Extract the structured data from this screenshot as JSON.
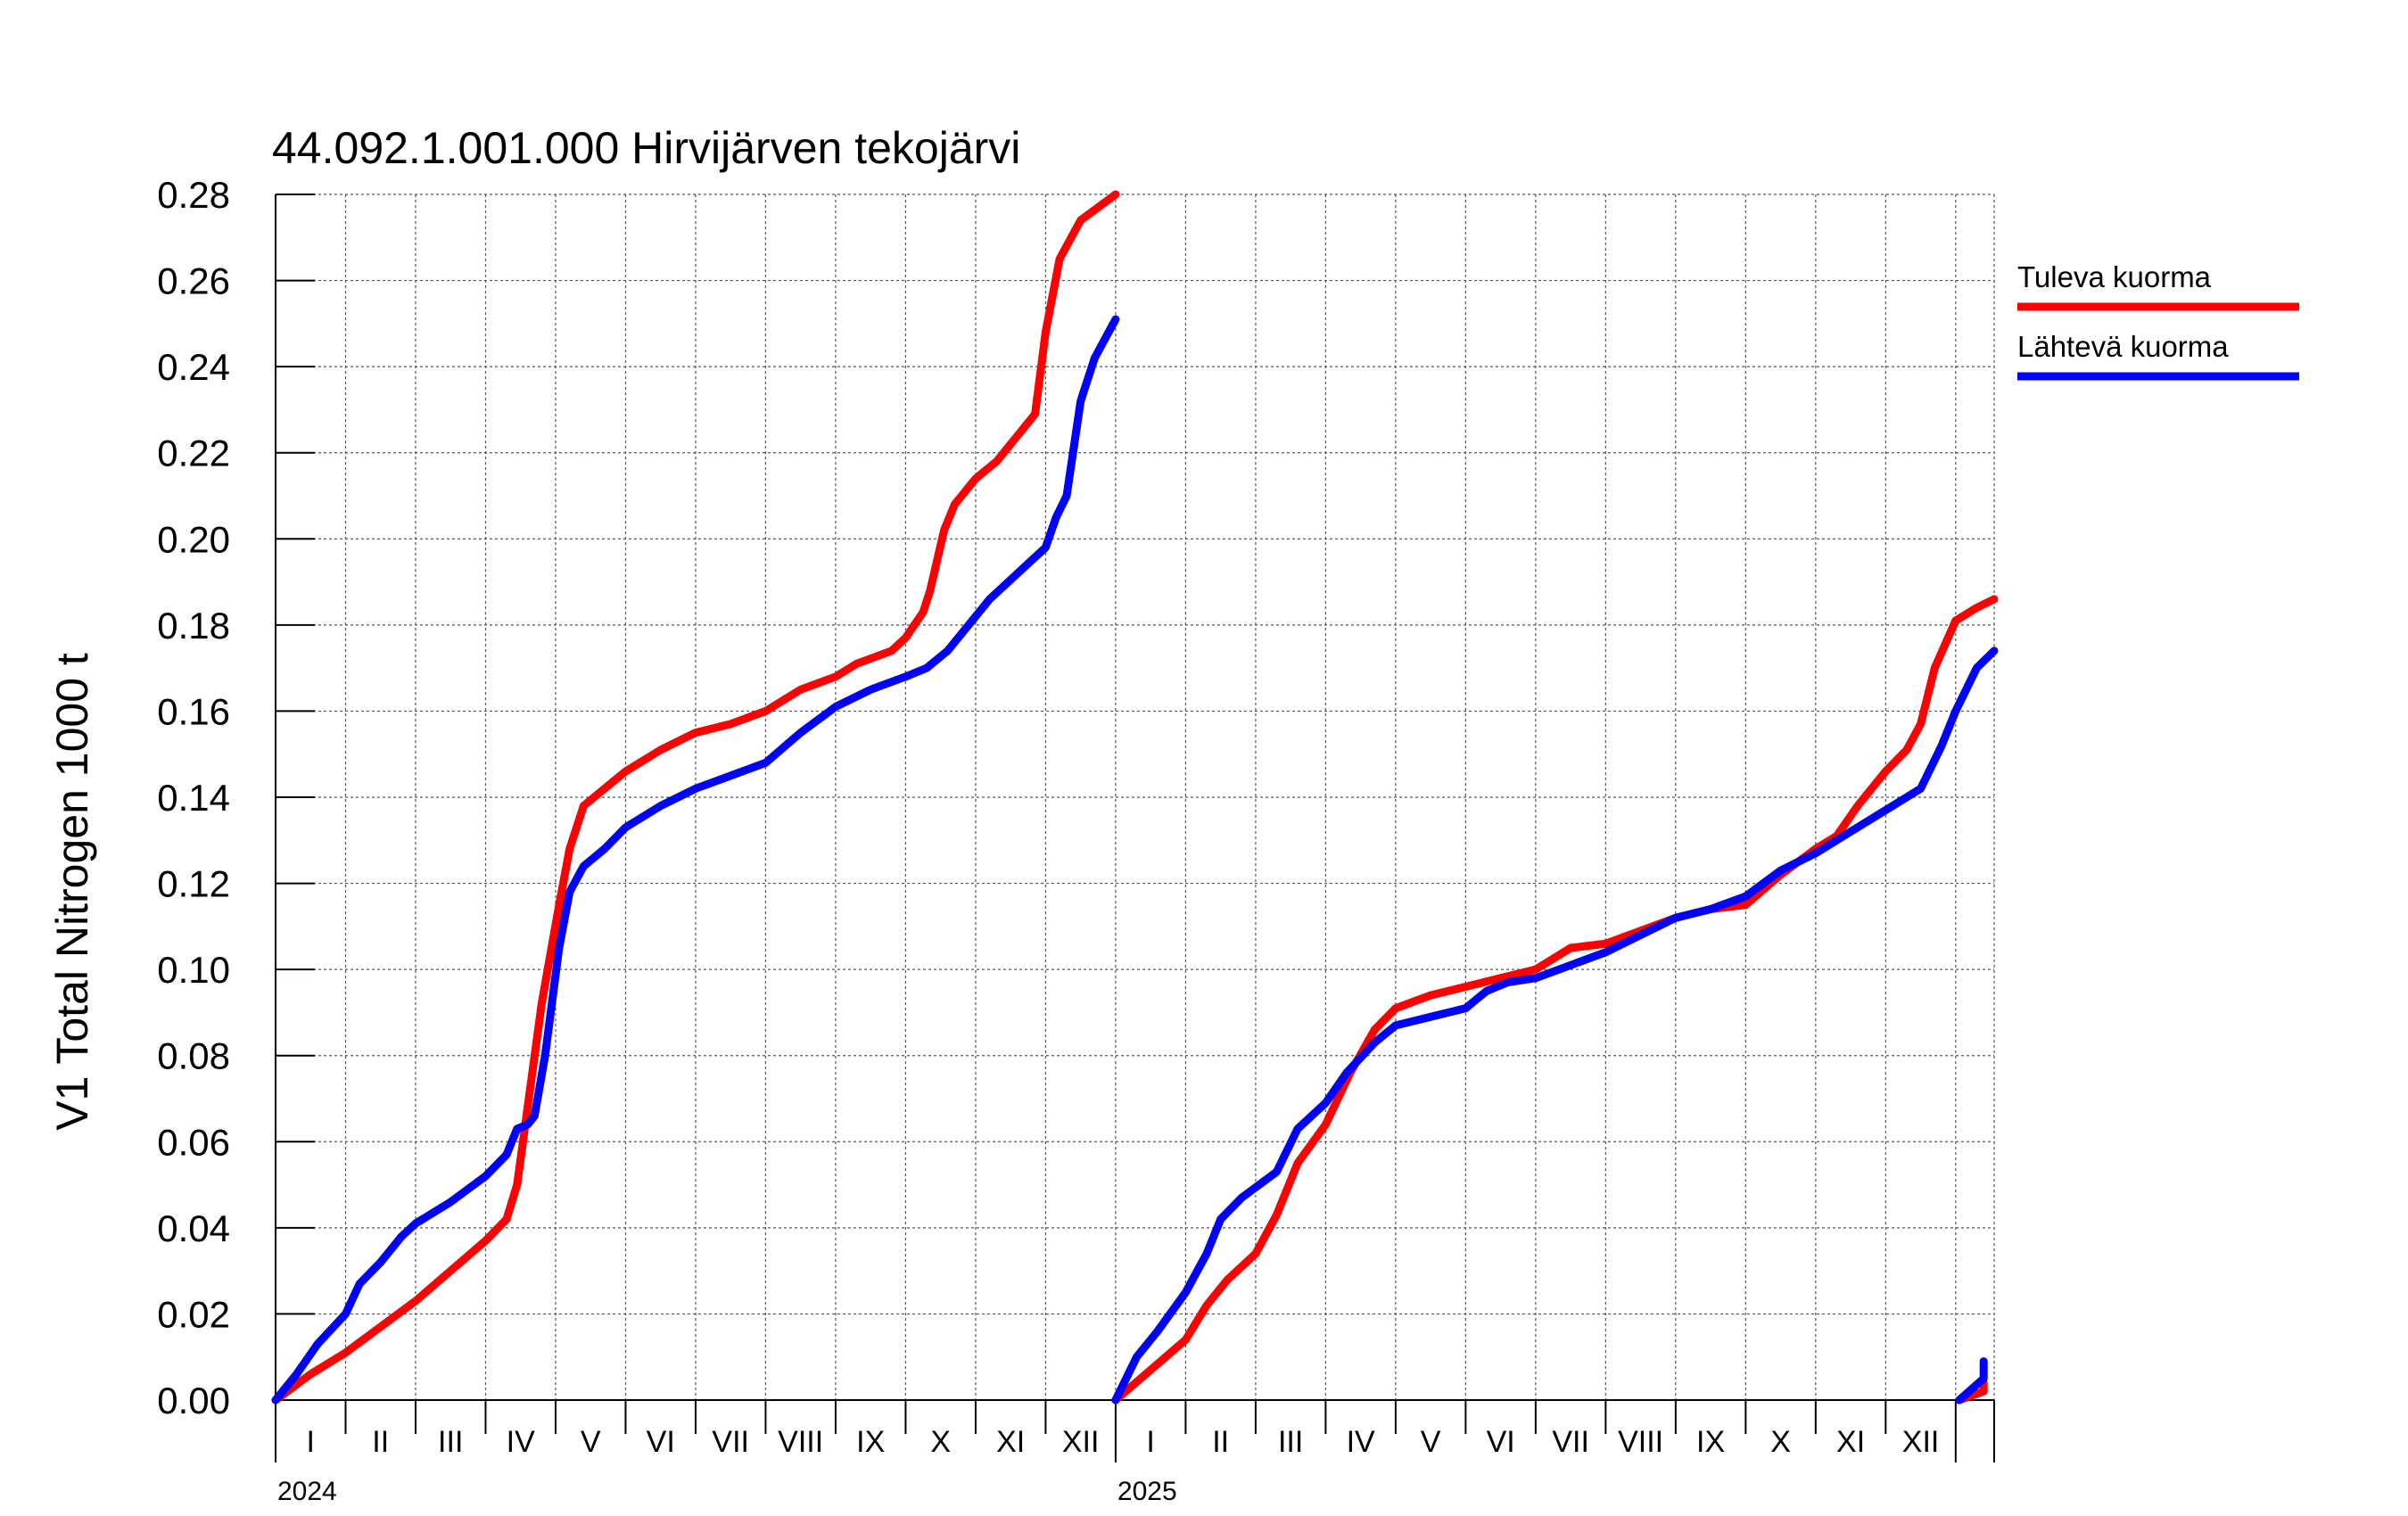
{
  "chart_data": {
    "type": "line",
    "title": "44.092.1.001.000 Hirvijärven tekojärvi",
    "ylabel": "V1 Total Nitrogen 1000 t",
    "xlabel": "",
    "ylim": [
      0,
      0.28
    ],
    "ytick_labels": [
      "0.00",
      "0.02",
      "0.04",
      "0.06",
      "0.08",
      "0.10",
      "0.12",
      "0.14",
      "0.16",
      "0.18",
      "0.20",
      "0.22",
      "0.24",
      "0.26",
      "0.28"
    ],
    "month_labels": [
      "I",
      "II",
      "III",
      "IV",
      "V",
      "VI",
      "VII",
      "VIII",
      "IX",
      "X",
      "XI",
      "XII"
    ],
    "years": [
      "2024",
      "2025"
    ],
    "x_unit": "months since 2024-01-01",
    "grid": true,
    "legend_position": "right",
    "series": [
      {
        "name": "Tuleva kuorma",
        "color": "#ff0000",
        "segments": [
          [
            [
              0,
              0
            ],
            [
              0.5,
              0.006
            ],
            [
              1,
              0.011
            ],
            [
              1.5,
              0.017
            ],
            [
              2,
              0.023
            ],
            [
              2.5,
              0.03
            ],
            [
              3,
              0.037
            ],
            [
              3.3,
              0.042
            ],
            [
              3.45,
              0.05
            ],
            [
              3.6,
              0.068
            ],
            [
              3.8,
              0.092
            ],
            [
              4.05,
              0.115
            ],
            [
              4.2,
              0.128
            ],
            [
              4.4,
              0.138
            ],
            [
              4.7,
              0.142
            ],
            [
              5,
              0.146
            ],
            [
              5.5,
              0.151
            ],
            [
              6,
              0.155
            ],
            [
              6.5,
              0.157
            ],
            [
              7,
              0.16
            ],
            [
              7.5,
              0.165
            ],
            [
              8,
              0.168
            ],
            [
              8.3,
              0.171
            ],
            [
              8.8,
              0.174
            ],
            [
              9.0,
              0.177
            ],
            [
              9.25,
              0.183
            ],
            [
              9.35,
              0.188
            ],
            [
              9.55,
              0.202
            ],
            [
              9.7,
              0.208
            ],
            [
              10,
              0.214
            ],
            [
              10.3,
              0.218
            ],
            [
              10.6,
              0.224
            ],
            [
              10.85,
              0.229
            ],
            [
              11.0,
              0.248
            ],
            [
              11.2,
              0.265
            ],
            [
              11.5,
              0.274
            ],
            [
              12,
              0.28
            ]
          ],
          [
            [
              12,
              0
            ],
            [
              12.5,
              0.007
            ],
            [
              13,
              0.014
            ],
            [
              13.3,
              0.022
            ],
            [
              13.6,
              0.028
            ],
            [
              14,
              0.034
            ],
            [
              14.3,
              0.043
            ],
            [
              14.6,
              0.055
            ],
            [
              15,
              0.064
            ],
            [
              15.35,
              0.076
            ],
            [
              15.7,
              0.086
            ],
            [
              16,
              0.091
            ],
            [
              16.5,
              0.094
            ],
            [
              17,
              0.096
            ],
            [
              17.5,
              0.098
            ],
            [
              18,
              0.1
            ],
            [
              18.3,
              0.103
            ],
            [
              18.5,
              0.105
            ],
            [
              19,
              0.106
            ],
            [
              19.5,
              0.109
            ],
            [
              20,
              0.112
            ],
            [
              20.5,
              0.114
            ],
            [
              21,
              0.115
            ],
            [
              21.5,
              0.122
            ],
            [
              22,
              0.128
            ],
            [
              22.3,
              0.131
            ],
            [
              22.6,
              0.138
            ],
            [
              23,
              0.146
            ],
            [
              23.3,
              0.151
            ],
            [
              23.5,
              0.157
            ],
            [
              23.7,
              0.17
            ],
            [
              24,
              0.181
            ],
            [
              24.3,
              0.184
            ],
            [
              24.55,
              0.186
            ]
          ],
          [
            [
              24.05,
              0
            ],
            [
              24.4,
              0.002
            ],
            [
              24.4,
              0.004
            ]
          ]
        ]
      },
      {
        "name": "Lähtevä kuorma",
        "color": "#0000ff",
        "segments": [
          [
            [
              0,
              0
            ],
            [
              0.3,
              0.006
            ],
            [
              0.6,
              0.013
            ],
            [
              1,
              0.02
            ],
            [
              1.2,
              0.027
            ],
            [
              1.5,
              0.032
            ],
            [
              1.8,
              0.038
            ],
            [
              2,
              0.041
            ],
            [
              2.5,
              0.046
            ],
            [
              3,
              0.052
            ],
            [
              3.3,
              0.057
            ],
            [
              3.45,
              0.063
            ],
            [
              3.6,
              0.064
            ],
            [
              3.7,
              0.066
            ],
            [
              3.85,
              0.08
            ],
            [
              4.05,
              0.105
            ],
            [
              4.2,
              0.118
            ],
            [
              4.4,
              0.124
            ],
            [
              4.7,
              0.128
            ],
            [
              5,
              0.133
            ],
            [
              5.5,
              0.138
            ],
            [
              6,
              0.142
            ],
            [
              6.5,
              0.145
            ],
            [
              7,
              0.148
            ],
            [
              7.5,
              0.155
            ],
            [
              8,
              0.161
            ],
            [
              8.5,
              0.165
            ],
            [
              9,
              0.168
            ],
            [
              9.3,
              0.17
            ],
            [
              9.6,
              0.174
            ],
            [
              9.9,
              0.18
            ],
            [
              10.2,
              0.186
            ],
            [
              10.6,
              0.192
            ],
            [
              11,
              0.198
            ],
            [
              11.15,
              0.205
            ],
            [
              11.3,
              0.21
            ],
            [
              11.5,
              0.232
            ],
            [
              11.7,
              0.242
            ],
            [
              12,
              0.251
            ]
          ],
          [
            [
              12,
              0
            ],
            [
              12.3,
              0.01
            ],
            [
              12.6,
              0.016
            ],
            [
              13,
              0.025
            ],
            [
              13.3,
              0.034
            ],
            [
              13.5,
              0.042
            ],
            [
              13.8,
              0.047
            ],
            [
              14.3,
              0.053
            ],
            [
              14.6,
              0.063
            ],
            [
              15,
              0.069
            ],
            [
              15.3,
              0.076
            ],
            [
              15.7,
              0.083
            ],
            [
              16,
              0.087
            ],
            [
              16.5,
              0.089
            ],
            [
              17,
              0.091
            ],
            [
              17.3,
              0.095
            ],
            [
              17.6,
              0.097
            ],
            [
              18,
              0.098
            ],
            [
              18.5,
              0.101
            ],
            [
              19,
              0.104
            ],
            [
              19.5,
              0.108
            ],
            [
              20,
              0.112
            ],
            [
              20.5,
              0.114
            ],
            [
              21,
              0.117
            ],
            [
              21.5,
              0.123
            ],
            [
              22,
              0.127
            ],
            [
              22.5,
              0.132
            ],
            [
              23,
              0.137
            ],
            [
              23.5,
              0.142
            ],
            [
              23.8,
              0.152
            ],
            [
              24,
              0.16
            ],
            [
              24.3,
              0.17
            ],
            [
              24.55,
              0.174
            ]
          ],
          [
            [
              24.05,
              0
            ],
            [
              24.4,
              0.005
            ],
            [
              24.4,
              0.009
            ]
          ]
        ]
      }
    ]
  }
}
